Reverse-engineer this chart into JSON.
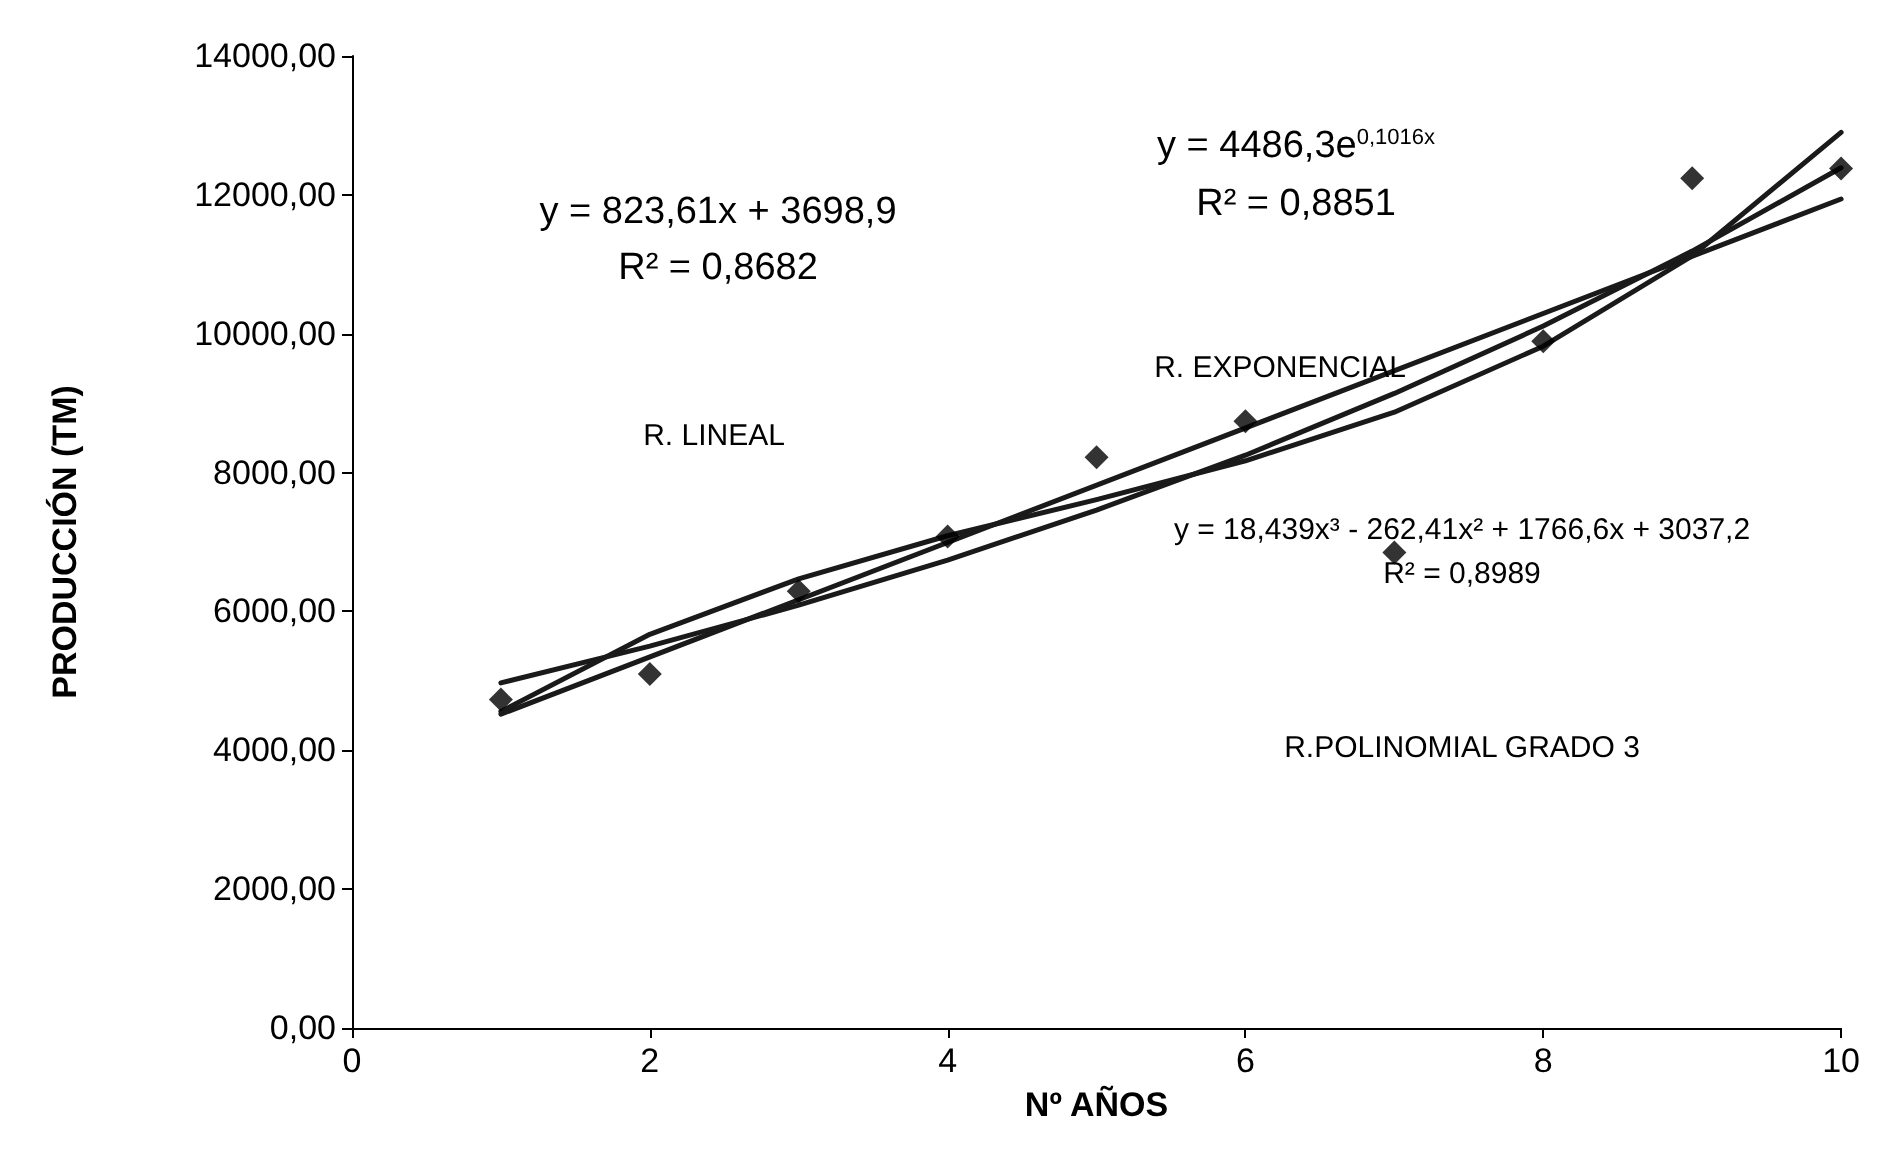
{
  "chart_data": {
    "type": "scatter",
    "xlabel": "Nº AÑOS",
    "ylabel": "PRODUCCIÓN (TM)",
    "xlim": [
      0,
      10
    ],
    "xticks": [
      0,
      2,
      4,
      6,
      8,
      10
    ],
    "ylim": [
      0,
      14000
    ],
    "yticks": [
      {
        "value": 0,
        "label": "0,00"
      },
      {
        "value": 2000,
        "label": "2000,00"
      },
      {
        "value": 4000,
        "label": "4000,00"
      },
      {
        "value": 6000,
        "label": "6000,00"
      },
      {
        "value": 8000,
        "label": "8000,00"
      },
      {
        "value": 10000,
        "label": "10000,00"
      },
      {
        "value": 12000,
        "label": "12000,00"
      },
      {
        "value": 14000,
        "label": "14000,00"
      }
    ],
    "grid": false,
    "series": [
      {
        "marker": "diamond",
        "color": "#000000",
        "x": [
          1,
          2,
          3,
          4,
          5,
          6,
          7,
          8,
          9,
          10
        ],
        "values": [
          4730,
          5100,
          6290,
          7080,
          8220,
          8740,
          6850,
          9890,
          12240,
          12380
        ]
      },
      {
        "type": "line",
        "marker": "none",
        "line_style": "solid",
        "color": "#1a1a1a",
        "x": [
          1,
          10
        ],
        "values": [
          4520,
          11940
        ]
      },
      {
        "type": "line",
        "marker": "none",
        "line_style": "solid",
        "color": "#1a1a1a",
        "x": [
          1,
          2,
          3,
          4,
          5,
          6,
          7,
          8,
          9,
          10
        ],
        "values": [
          4970,
          5500,
          6090,
          6740,
          7460,
          8250,
          9140,
          10110,
          11190,
          12390
        ]
      },
      {
        "type": "line",
        "marker": "none",
        "line_style": "solid",
        "color": "#1a1a1a",
        "x": [
          1,
          2,
          3,
          4,
          5,
          6,
          7,
          8,
          9,
          10
        ],
        "values": [
          4560,
          5670,
          6470,
          7090,
          7610,
          8170,
          8870,
          9820,
          11120,
          12900
        ]
      }
    ],
    "annotations": [
      "y = 823,61x + 3698,9",
      "R² = 0,8682",
      "y = 4486,3e$^{0,1016x}$",
      "R² = 0,8851",
      "R. LINEAL",
      "R. EXPONENCIAL",
      "y = 18,439x³ - 262,41x² + 1766,6x + 3037,2",
      "R² = 0,8989",
      "R.POLINOMIAL GRADO 3"
    ]
  }
}
